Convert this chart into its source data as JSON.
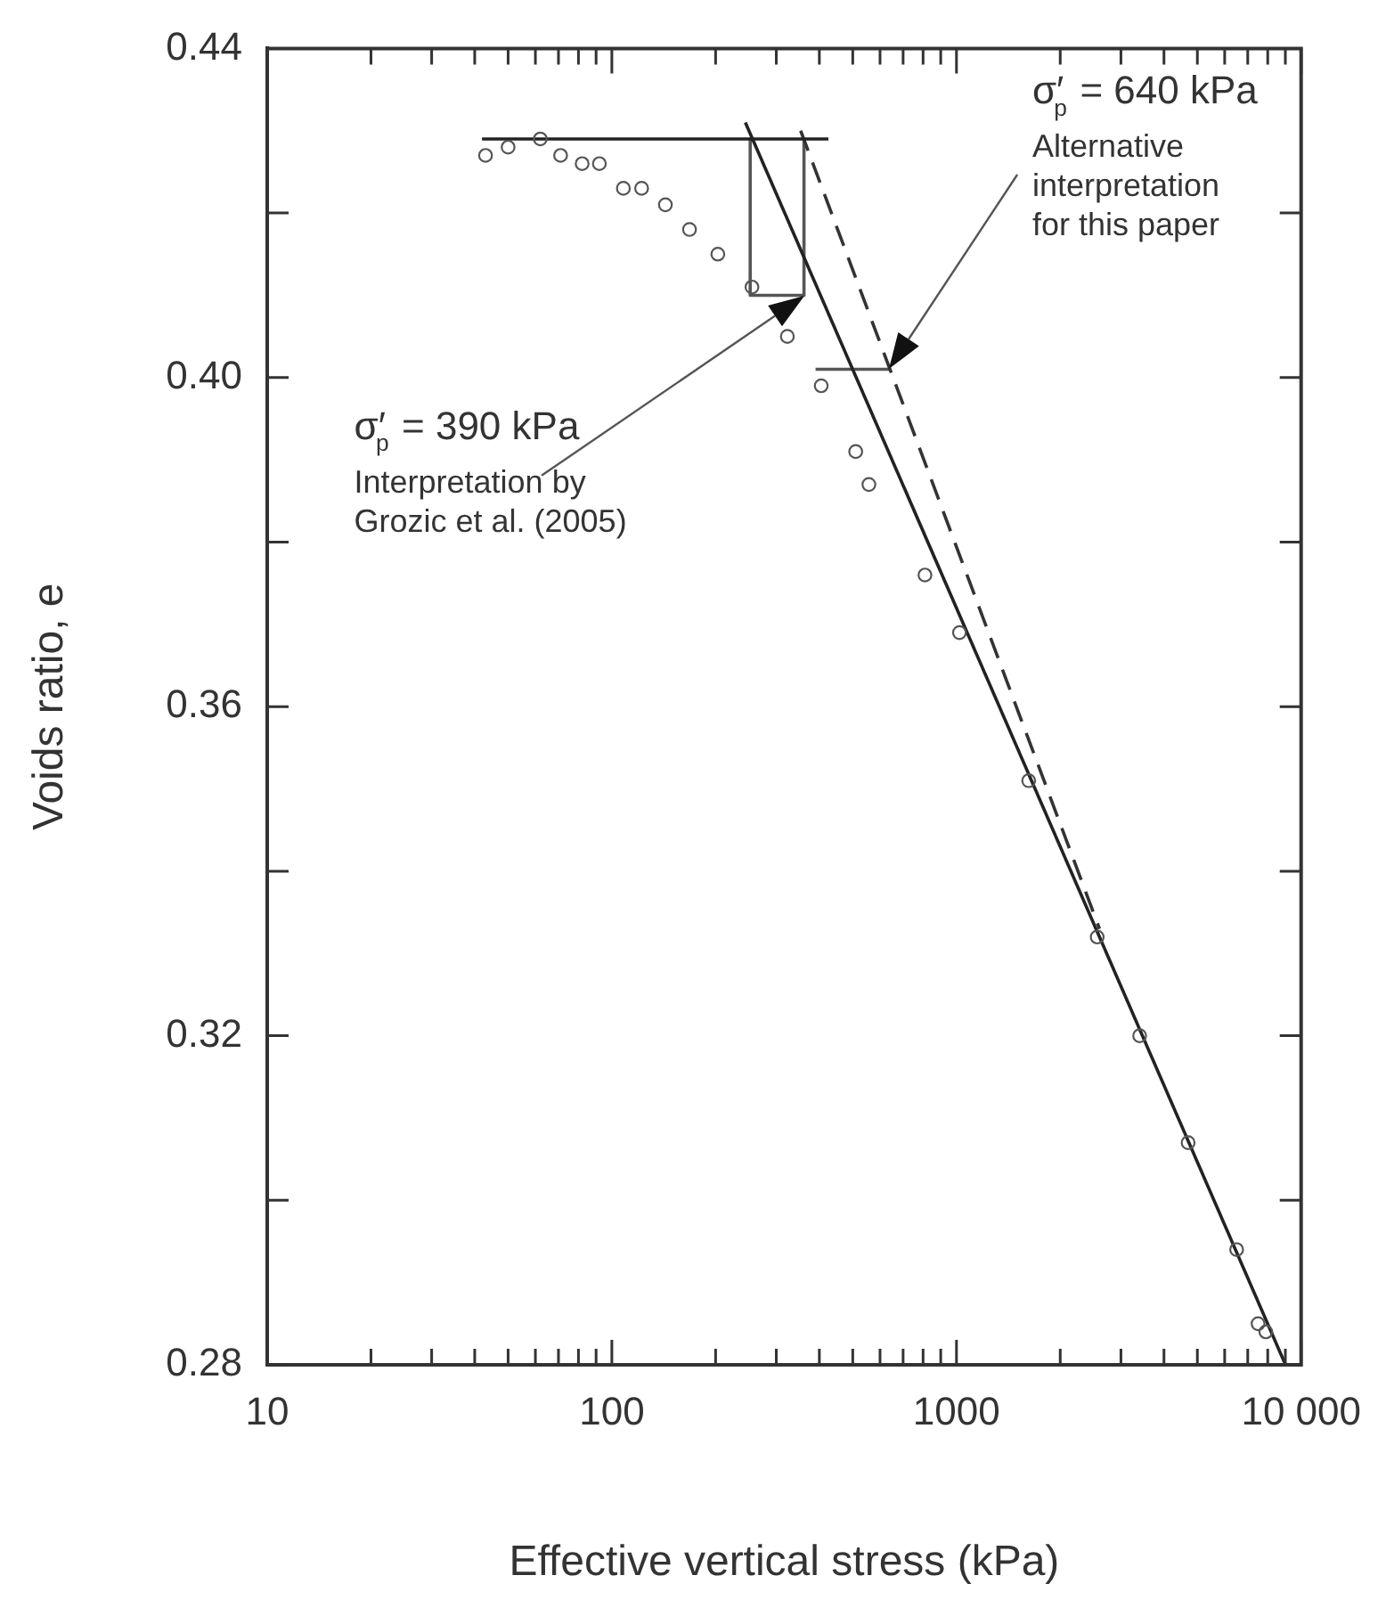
{
  "chart_data": {
    "type": "scatter",
    "xlabel": "Effective vertical stress (kPa)",
    "ylabel": "Voids ratio, e",
    "log": "x",
    "grid": false,
    "legend": false,
    "xlim": [
      10,
      10000
    ],
    "ylim": [
      0.28,
      0.44
    ],
    "xticks": [
      10,
      {
        "value": 20,
        "label": null
      },
      {
        "value": 30,
        "label": null
      },
      {
        "value": 40,
        "label": null
      },
      {
        "value": 50,
        "label": null
      },
      {
        "value": 60,
        "label": null
      },
      {
        "value": 70,
        "label": null
      },
      {
        "value": 80,
        "label": null
      },
      {
        "value": 90,
        "label": null
      },
      100,
      {
        "value": 200,
        "label": null
      },
      {
        "value": 300,
        "label": null
      },
      {
        "value": 400,
        "label": null
      },
      {
        "value": 500,
        "label": null
      },
      {
        "value": 600,
        "label": null
      },
      {
        "value": 700,
        "label": null
      },
      {
        "value": 800,
        "label": null
      },
      {
        "value": 900,
        "label": null
      },
      1000,
      {
        "value": 2000,
        "label": null
      },
      {
        "value": 3000,
        "label": null
      },
      {
        "value": 4000,
        "label": null
      },
      {
        "value": 5000,
        "label": null
      },
      {
        "value": 6000,
        "label": null
      },
      {
        "value": 7000,
        "label": null
      },
      {
        "value": 8000,
        "label": null
      },
      {
        "value": 9000,
        "label": null
      },
      {
        "value": 10000,
        "label": "10 000"
      }
    ],
    "yticks": [
      0.28,
      {
        "value": 0.3,
        "label": null
      },
      0.32,
      {
        "value": 0.34,
        "label": null
      },
      0.36,
      {
        "value": 0.38,
        "label": null
      },
      {
        "value": 0.4,
        "label": "0.40"
      },
      {
        "value": 0.42,
        "label": null
      },
      0.44
    ],
    "series": [
      {
        "type": "scatter",
        "marker": "circle",
        "color": "#555555",
        "x": [
          43,
          50,
          62,
          71,
          82,
          92,
          108,
          122,
          143,
          168,
          203,
          255,
          323,
          405,
          510,
          557,
          810,
          1020,
          1620,
          2560,
          3400,
          4700,
          6500,
          7500,
          7900
        ],
        "values": [
          0.427,
          0.428,
          0.429,
          0.427,
          0.426,
          0.426,
          0.423,
          0.423,
          0.421,
          0.418,
          0.415,
          0.411,
          0.405,
          0.399,
          0.391,
          0.387,
          0.376,
          0.369,
          0.351,
          0.332,
          0.32,
          0.307,
          0.294,
          0.285,
          0.284
        ]
      },
      {
        "type": "line",
        "marker": "none",
        "line_style": "solid",
        "color": "#222222",
        "x": [
          42,
          425
        ],
        "values": [
          0.429,
          0.429
        ]
      },
      {
        "type": "line",
        "marker": "none",
        "line_style": "solid",
        "color": "#222222",
        "x": [
          244,
          9010
        ],
        "values": [
          0.431,
          0.28
        ]
      },
      {
        "type": "line",
        "marker": "none",
        "line_style": "dashed",
        "color": "#333333",
        "x": [
          353,
          2600
        ],
        "values": [
          0.43,
          0.333
        ]
      },
      {
        "type": "line",
        "marker": "none",
        "line_style": "solid",
        "color": "#555555",
        "x": [
          252,
          252,
          361,
          361
        ],
        "values": [
          0.429,
          0.41,
          0.41,
          0.429
        ]
      },
      {
        "type": "line",
        "marker": "none",
        "line_style": "solid",
        "color": "#555555",
        "x": [
          390,
          640
        ],
        "values": [
          0.401,
          0.401
        ]
      }
    ],
    "annotations": [
      "σ′$_{p}$ = 390 kPa\nInterpretation by\nGrozic et al. (2005)",
      "σ′$_{p}$ = 640 kPa\nAlternative\ninterpretation\nfor this paper"
    ]
  }
}
